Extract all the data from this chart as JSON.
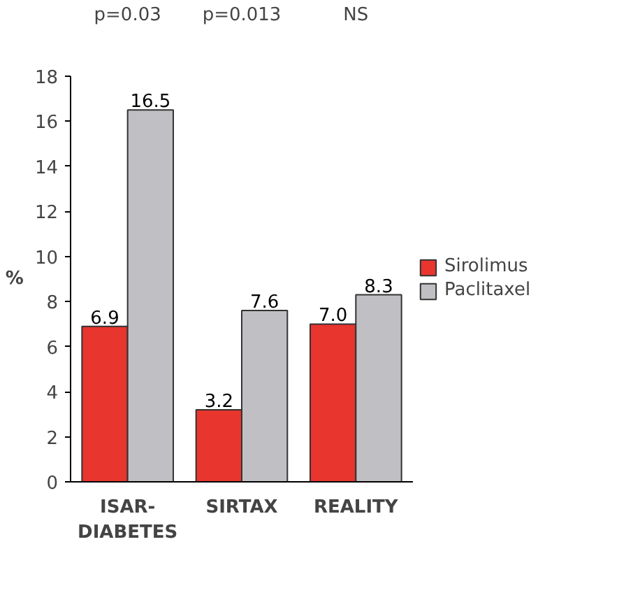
{
  "chart_data": {
    "type": "bar",
    "ylabel": "%",
    "categories": [
      "ISAR-DIABETES",
      "SIRTAX",
      "REALITY"
    ],
    "series": [
      {
        "name": "Sirolimus",
        "color": "#e8352e",
        "values": [
          6.9,
          3.2,
          7.0
        ],
        "value_labels": [
          "6.9",
          "3.2",
          "7.0"
        ]
      },
      {
        "name": "Paclitaxel",
        "color": "#c0c0c4",
        "values": [
          16.5,
          7.6,
          8.3
        ],
        "value_labels": [
          "16.5",
          "7.6",
          "8.3"
        ]
      }
    ],
    "ylim": [
      0,
      18
    ],
    "yticks": [
      0,
      2,
      4,
      6,
      8,
      10,
      12,
      14,
      16,
      18
    ],
    "legend": "right",
    "annotations": [
      "p=0.03",
      "p=0.013",
      "NS"
    ]
  }
}
